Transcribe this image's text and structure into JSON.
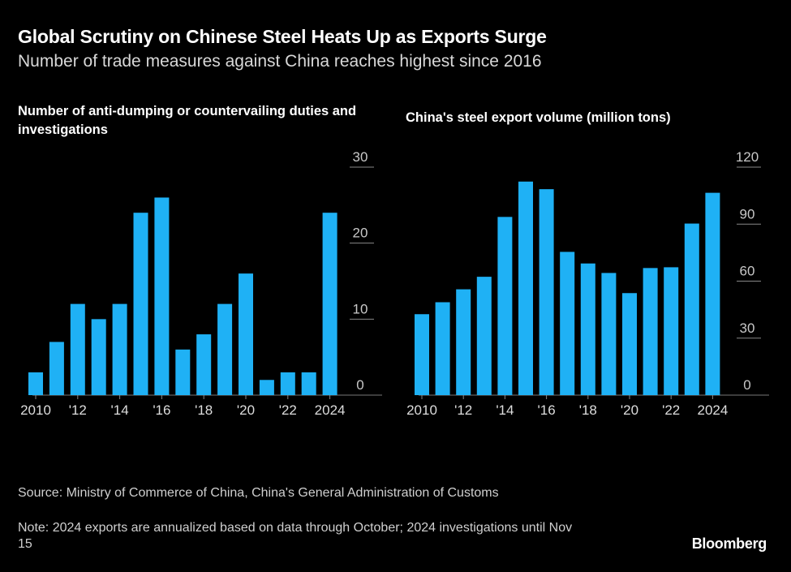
{
  "title": "Global Scrutiny on Chinese Steel Heats Up as Exports Surge",
  "subtitle": "Number of trade measures against China reaches highest since 2016",
  "chart_data": [
    {
      "type": "bar",
      "title": "Number of anti-dumping or countervailing duties and investigations",
      "categories": [
        "2010",
        "2011",
        "2012",
        "2013",
        "2014",
        "2015",
        "2016",
        "2017",
        "2018",
        "2019",
        "2020",
        "2021",
        "2022",
        "2023",
        "2024"
      ],
      "values": [
        3,
        7,
        12,
        10,
        12,
        24,
        26,
        6,
        8,
        12,
        16,
        2,
        3,
        3,
        24
      ],
      "ylim": [
        0,
        30
      ],
      "yticks": [
        "30",
        "20",
        "10",
        "0"
      ],
      "ytick_values": [
        30,
        20,
        10,
        0
      ],
      "xticks": [
        "2010",
        "'12",
        "'14",
        "'16",
        "'18",
        "'20",
        "'22",
        "2024"
      ],
      "xtick_indices": [
        0,
        2,
        4,
        6,
        8,
        10,
        12,
        14
      ],
      "color": "#1fb1f5"
    },
    {
      "type": "bar",
      "title": "China's steel export volume (million tons)",
      "categories": [
        "2010",
        "2011",
        "2012",
        "2013",
        "2014",
        "2015",
        "2016",
        "2017",
        "2018",
        "2019",
        "2020",
        "2021",
        "2022",
        "2023",
        "2024"
      ],
      "values": [
        42.6,
        48.9,
        55.7,
        62.3,
        93.8,
        112.4,
        108.4,
        75.4,
        69.3,
        64.3,
        53.7,
        66.9,
        67.3,
        90.3,
        106.5
      ],
      "ylim": [
        0,
        120
      ],
      "yticks": [
        "120",
        "90",
        "60",
        "30",
        "0"
      ],
      "ytick_values": [
        120,
        90,
        60,
        30,
        0
      ],
      "xticks": [
        "2010",
        "'12",
        "'14",
        "'16",
        "'18",
        "'20",
        "'22",
        "2024"
      ],
      "xtick_indices": [
        0,
        2,
        4,
        6,
        8,
        10,
        12,
        14
      ],
      "color": "#1fb1f5"
    }
  ],
  "source": "Source: Ministry of Commerce of China, China's General Administration of Customs",
  "note": "Note: 2024 exports are annualized based on data through October; 2024 investigations until Nov 15",
  "brand": "Bloomberg"
}
